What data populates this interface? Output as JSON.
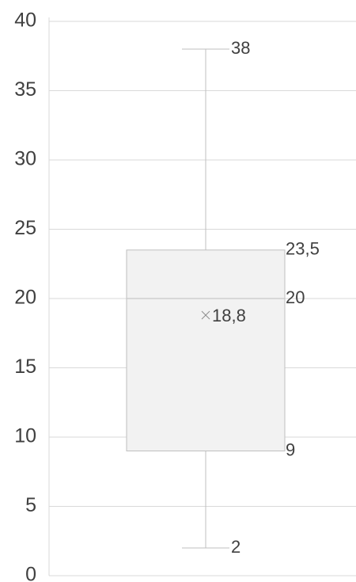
{
  "chart_data": {
    "type": "box",
    "min": 2,
    "q1": 9,
    "median": 20,
    "q3": 23.5,
    "max": 38,
    "mean": 18.8,
    "value_labels": {
      "q3": "23,5",
      "mean": "18,8"
    },
    "color": "#f2f2f2",
    "stroke": "#bfbfbf",
    "ylim": [
      0,
      40
    ],
    "yticks": [
      0,
      5,
      10,
      15,
      20,
      25,
      30,
      35,
      40
    ],
    "grid": true
  }
}
